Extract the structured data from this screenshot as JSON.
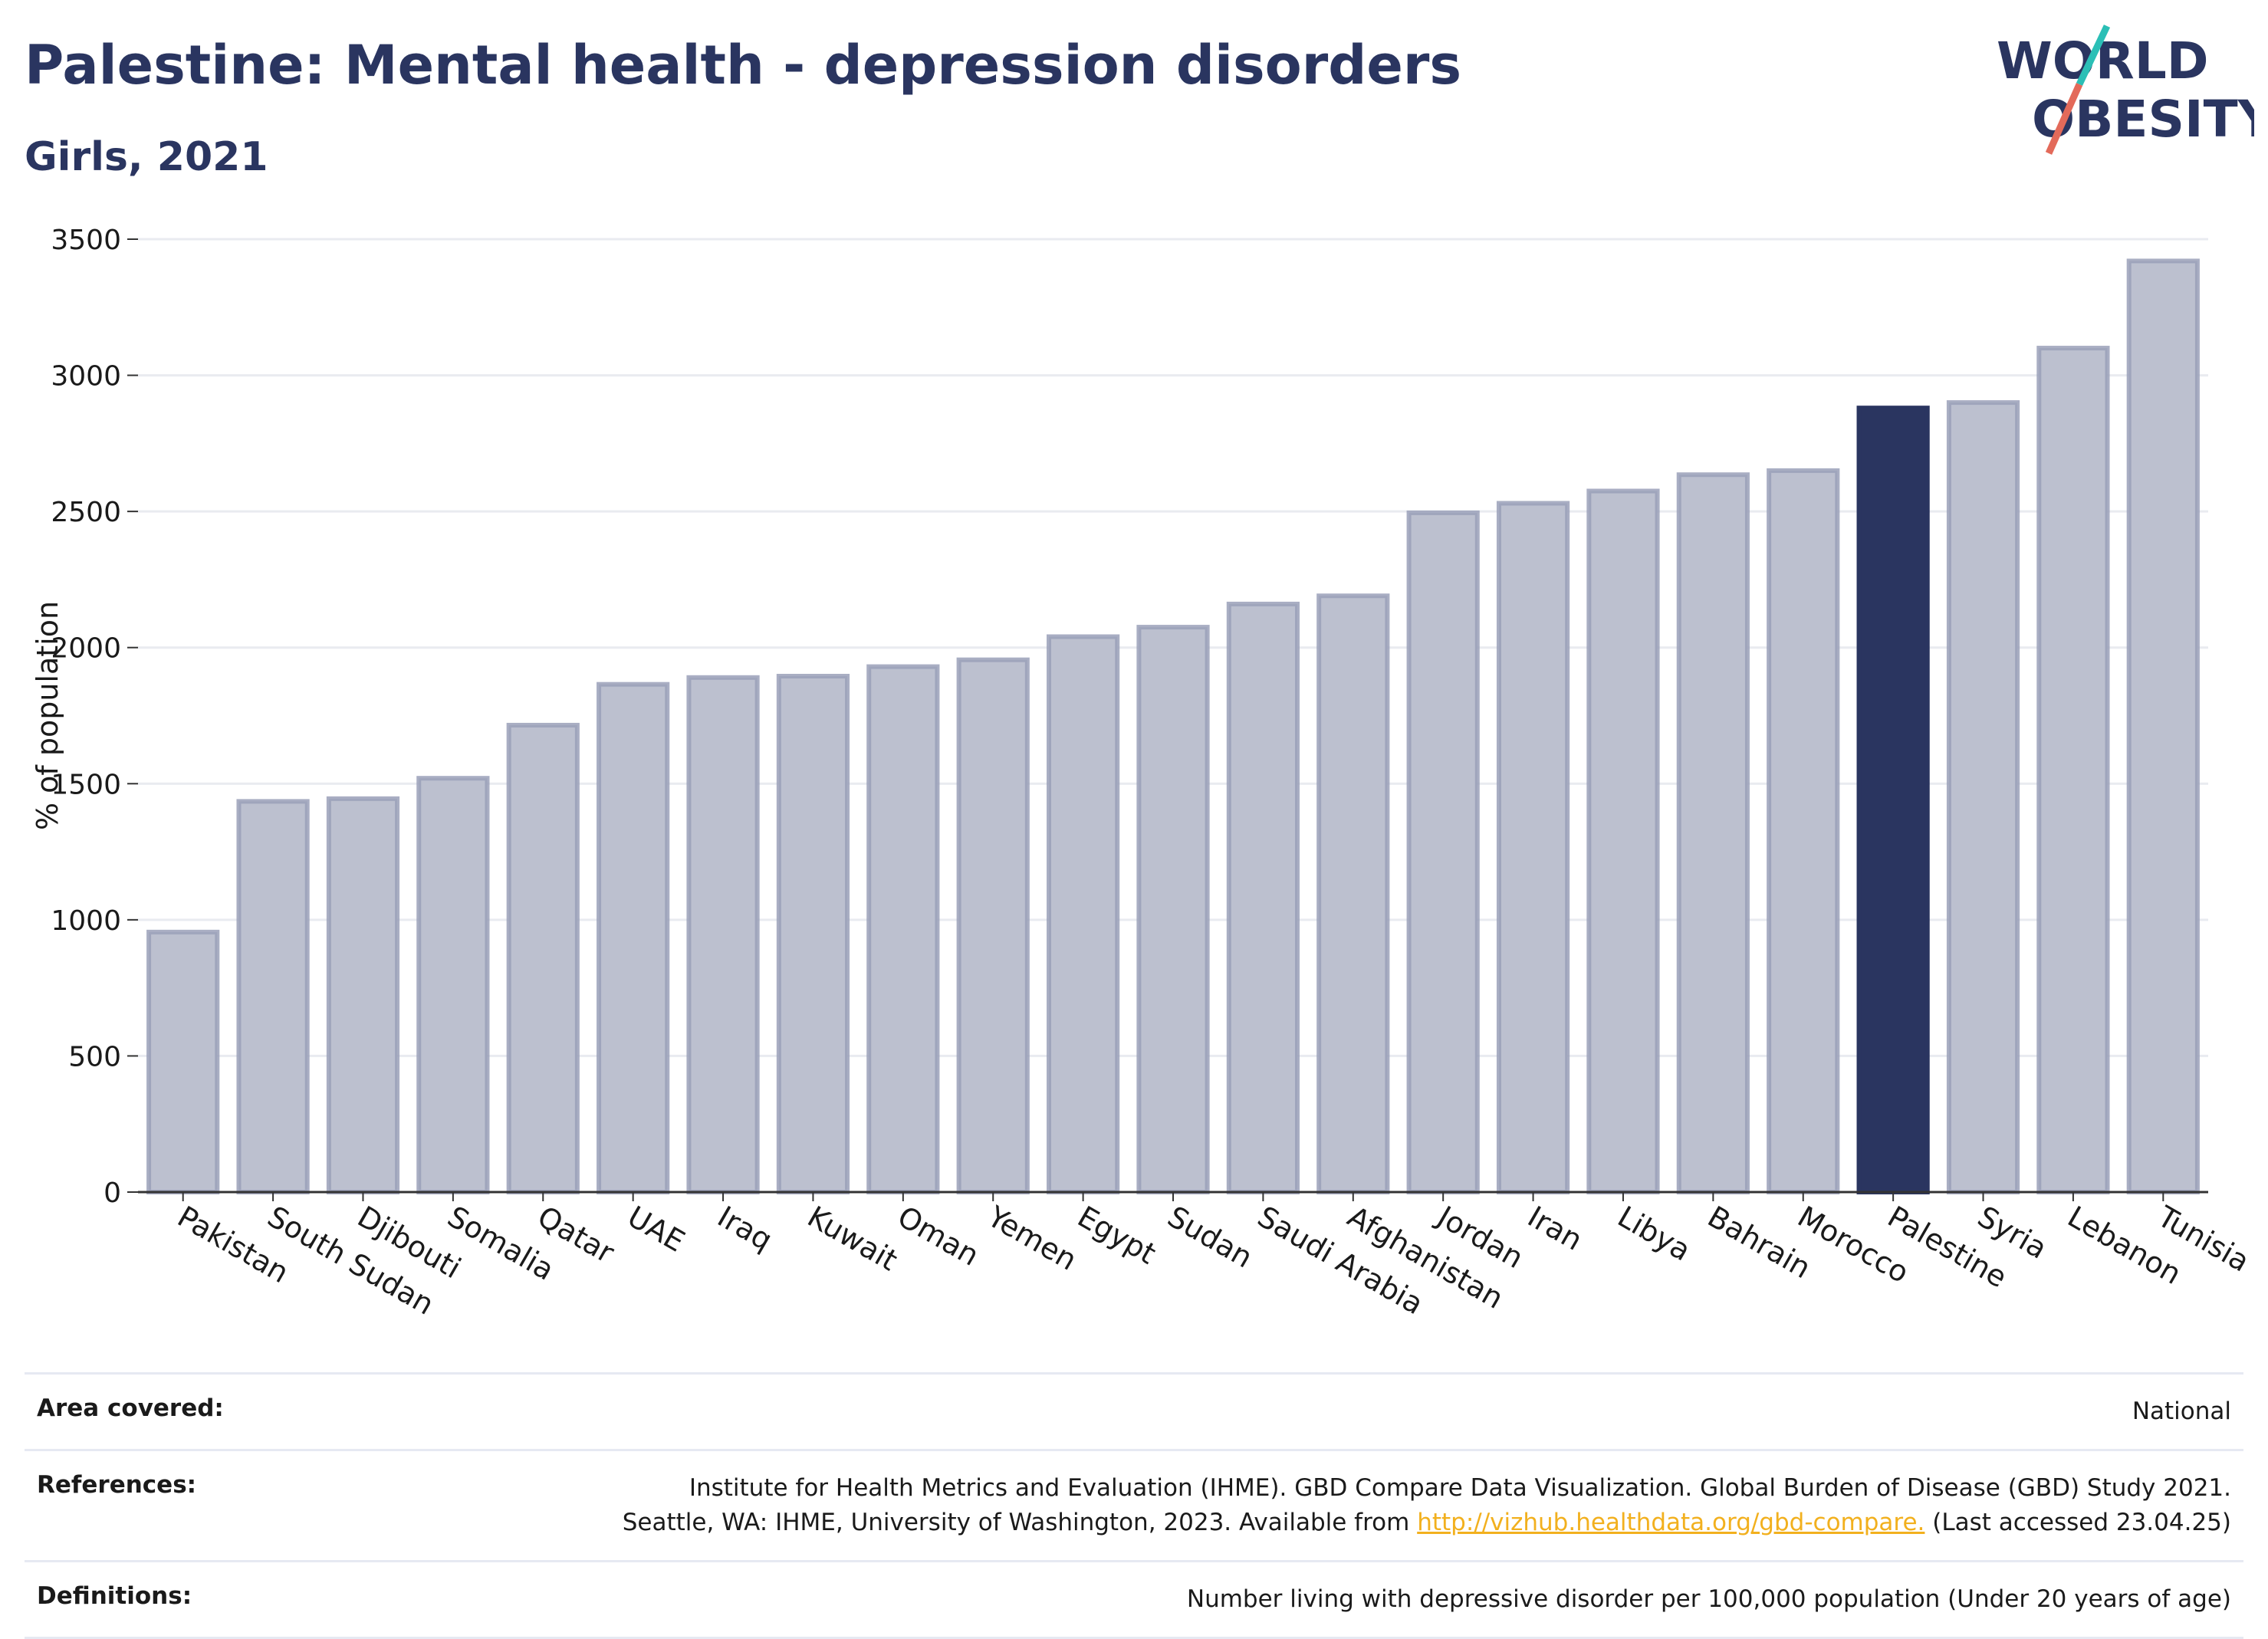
{
  "header": {
    "title": "Palestine: Mental health - depression disorders",
    "subtitle": "Girls, 2021"
  },
  "logo": {
    "line1": "WORLD",
    "line2": "OBESITY"
  },
  "colors": {
    "highlight": "#2a3560",
    "bar": "#bcc0cf",
    "bar_edge": "#9aa0b8",
    "accent_red": "#e36a5a",
    "accent_teal": "#2bbfb6"
  },
  "chart_data": {
    "type": "bar",
    "title": "Palestine: Mental health - depression disorders",
    "subtitle": "Girls, 2021",
    "xlabel": "",
    "ylabel": "% of population",
    "ylim": [
      0,
      3500
    ],
    "yticks": [
      0,
      500,
      1000,
      1500,
      2000,
      2500,
      3000,
      3500
    ],
    "grid": true,
    "highlight": "Palestine",
    "categories": [
      "Pakistan",
      "South Sudan",
      "Djibouti",
      "Somalia",
      "Qatar",
      "UAE",
      "Iraq",
      "Kuwait",
      "Oman",
      "Yemen",
      "Egypt",
      "Sudan",
      "Saudi Arabia",
      "Afghanistan",
      "Jordan",
      "Iran",
      "Libya",
      "Bahrain",
      "Morocco",
      "Palestine",
      "Syria",
      "Lebanon",
      "Tunisia"
    ],
    "values": [
      955,
      1435,
      1445,
      1520,
      1715,
      1865,
      1890,
      1895,
      1930,
      1955,
      2040,
      2075,
      2160,
      2190,
      2495,
      2530,
      2575,
      2635,
      2650,
      2880,
      2900,
      3100,
      3420
    ]
  },
  "footer": {
    "area_label": "Area covered:",
    "area_value": "National",
    "references_label": "References:",
    "references_line1": "Institute for Health Metrics and Evaluation (IHME). GBD Compare Data Visualization. Global Burden of Disease (GBD) Study 2021.",
    "references_line2_prefix": "Seattle, WA: IHME, University of Washington, 2023. Available from ",
    "references_link": "http://vizhub.healthdata.org/gbd-compare.",
    "references_line2_suffix": " (Last accessed 23.04.25)",
    "definitions_label": "Definitions:",
    "definitions_value": "Number living with depressive disorder per 100,000 population (Under 20 years of age)"
  }
}
